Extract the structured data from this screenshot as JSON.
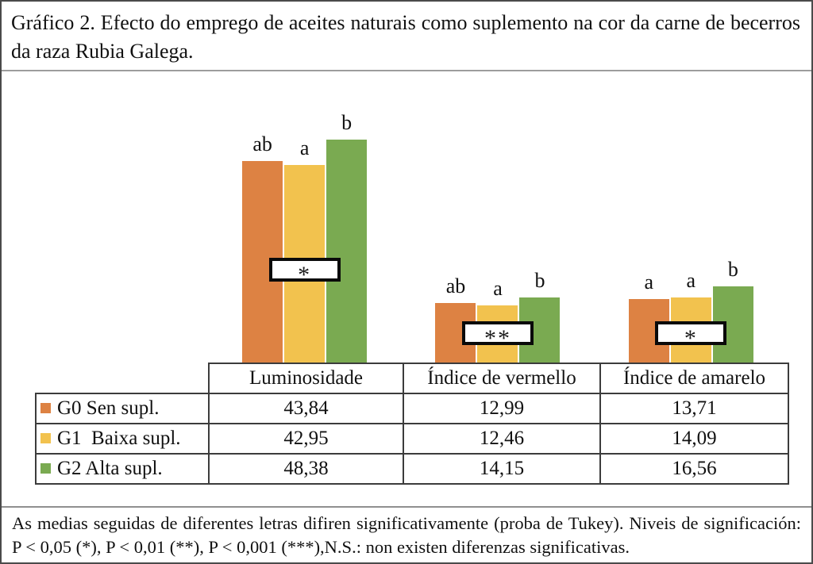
{
  "title": "Gráfico 2. Efecto do emprego de aceites naturais como suplemento na cor da carne de becerros da raza Rubia Galega.",
  "footnote": "As medias seguidas de diferentes letras difiren significativamente (proba de Tukey). Niveis de significación: P < 0,05 (*), P < 0,01 (**), P < 0,001 (***),N.S.: non existen diferenzas significativas.",
  "chart_data": {
    "type": "bar",
    "categories": [
      "Luminosidade",
      "Índice de vermello",
      "Índice de amarelo"
    ],
    "series": [
      {
        "name": "G0 Sen supl.",
        "color": "#DD8243",
        "values": [
          43.84,
          12.99,
          13.71
        ]
      },
      {
        "name": "G1  Baixa supl.",
        "color": "#F2C24E",
        "values": [
          42.95,
          12.46,
          14.09
        ]
      },
      {
        "name": "G2 Alta supl.",
        "color": "#7AAA51",
        "values": [
          48.38,
          14.15,
          16.56
        ]
      }
    ],
    "significance_letters": [
      [
        "ab",
        "a",
        "b"
      ],
      [
        "ab",
        "a",
        "b"
      ],
      [
        "a",
        "a",
        "b"
      ]
    ],
    "significance_boxes": [
      "*",
      "**",
      "*"
    ],
    "ylim": [
      0,
      55
    ],
    "grid": false,
    "axes_visible": false,
    "legend_position": "table-rows-left"
  },
  "table": {
    "header": [
      "",
      "Luminosidade",
      "Índice de vermello",
      "Índice de amarelo"
    ],
    "rows": [
      {
        "label": "G0 Sen supl.",
        "swatch": "#DD8243",
        "cells": [
          "43,84",
          "12,99",
          "13,71"
        ]
      },
      {
        "label": "G1  Baixa supl.",
        "swatch": "#F2C24E",
        "cells": [
          "42,95",
          "12,46",
          "14,09"
        ]
      },
      {
        "label": "G2 Alta supl.",
        "swatch": "#7AAA51",
        "cells": [
          "48,38",
          "14,15",
          "16,56"
        ]
      }
    ]
  }
}
